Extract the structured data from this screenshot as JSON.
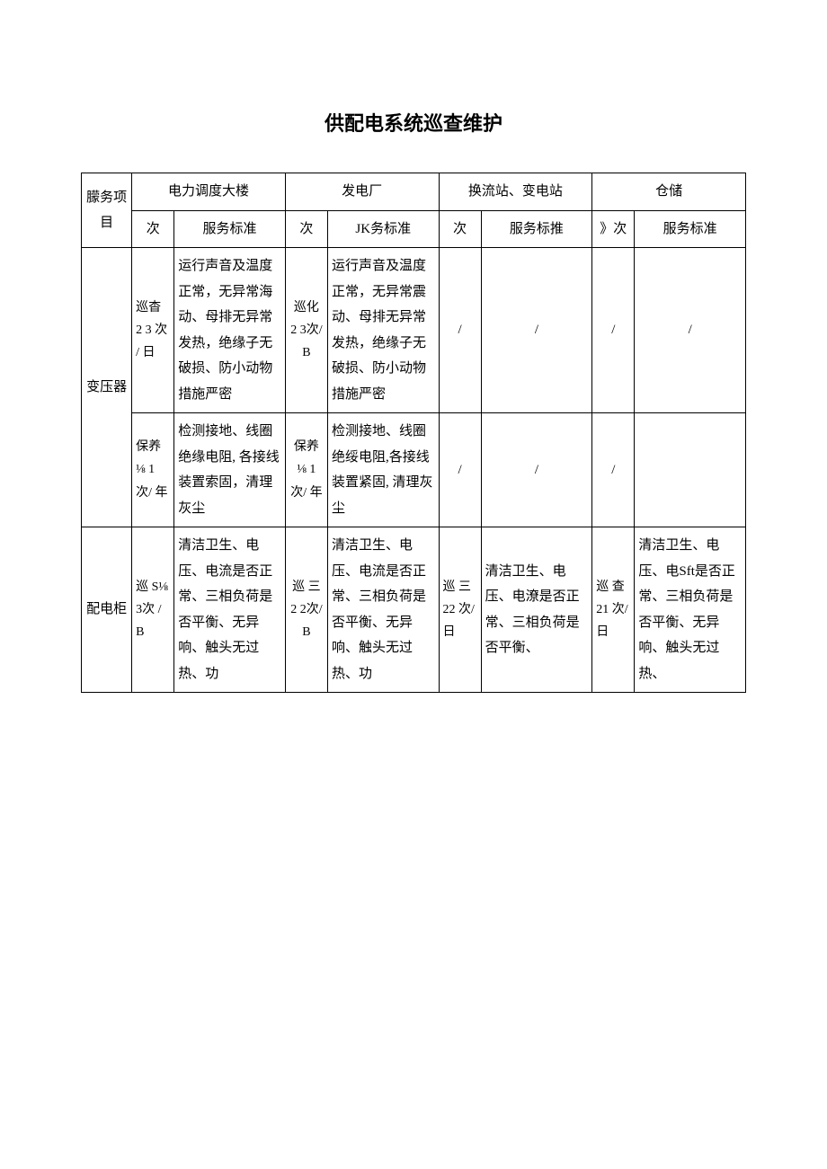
{
  "title": "供配电系统巡查维护",
  "header": {
    "item": "朦务项目",
    "loc1": "电力调度大楼",
    "loc2": "发电厂",
    "loc3": "换流站、变电站",
    "loc4": "仓储",
    "freq": "次",
    "freq_alt": "》次",
    "std1": "服务标准",
    "std2": "JK务标准",
    "std3": "服务标推",
    "std4": "服务标准"
  },
  "rows": [
    {
      "item": "变压器",
      "sub": [
        {
          "f1": "巡杳 2 3 次 / 日",
          "s1": "运行声音及温度正常，无异常海动、母排无异常发热，绝缘子无破损、防小动物措施严密",
          "f2": "巡化 2 3次/ B",
          "s2": "运行声音及温度正常，无异常震动、母排无异常发热，绝缘子无破损、防小动物措施严密",
          "f3": "/",
          "s3": "/",
          "f4": "/",
          "s4": "/"
        },
        {
          "f1": "保养 ⅛ 1 次/ 年",
          "s1": "检测接地、线圈绝缘电阻, 各接线装置索固，清理灰尘",
          "f2": "保养 ⅛ 1 次/ 年",
          "s2": "检测接地、线圈绝绥电阻,各接线装置紧固, 清理灰尘",
          "f3": "/",
          "s3": "/",
          "f4": "/",
          "s4": ""
        }
      ]
    },
    {
      "item": "配电柜",
      "sub": [
        {
          "f1": "巡 S⅛ 3次 / B",
          "s1": "清洁卫生、电压、电流是否正常、三相负荷是否平衡、无异响、触头无过热、功",
          "f2": "巡 三 2 2次/ B",
          "s2": "清洁卫生、电压、电流是否正常、三相负荷是否平衡、无异响、触头无过热、功",
          "f3": "巡 三 22 次/日",
          "s3": "清洁卫生、电压、电潦是否正常、三相负荷是否平衡、",
          "f4": "巡 查 21 次/日",
          "s4": "清洁卫生、电压、电Sft是否正常、三相负荷是否平衡、无异响、触头无过热、"
        }
      ]
    }
  ]
}
